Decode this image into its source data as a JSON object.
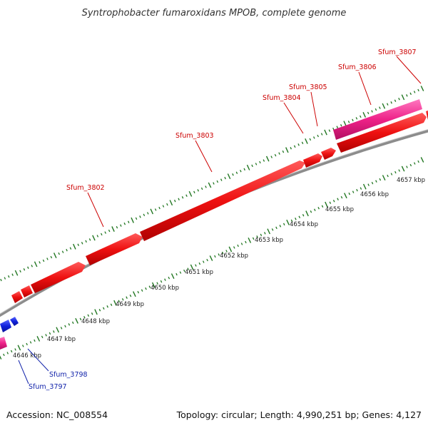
{
  "title": "Syntrophobacter fumaroxidans MPOB, complete genome",
  "footer": {
    "accession": "Accession: NC_008554",
    "summary": "Topology: circular; Length: 4,990,251 bp; Genes: 4,127"
  },
  "colors": {
    "forward_gene": "#ee1111",
    "forward_rna": "#ee2288",
    "reverse_gene": "#1122dd",
    "reverse_rna": "#ee2288",
    "backbone": "#8c8c8c",
    "ticks": "#227722",
    "label_forward": "#cc0000",
    "label_reverse": "#1122aa"
  },
  "chart_data": {
    "type": "genome-map",
    "topology": "circular",
    "length_bp": 4990251,
    "scale_labels": [
      "4646 kbp",
      "4647 kbp",
      "4648 kbp",
      "4649 kbp",
      "4650 kbp",
      "4651 kbp",
      "4652 kbp",
      "4653 kbp",
      "4654 kbp",
      "4655 kbp",
      "4656 kbp",
      "4657 kbp"
    ],
    "gene_labels": {
      "forward": [
        "Sfum_3802",
        "Sfum_3803",
        "Sfum_3804",
        "Sfum_3805",
        "Sfum_3806",
        "Sfum_3807"
      ],
      "reverse": [
        "Sfum_3797",
        "Sfum_3798"
      ]
    }
  }
}
